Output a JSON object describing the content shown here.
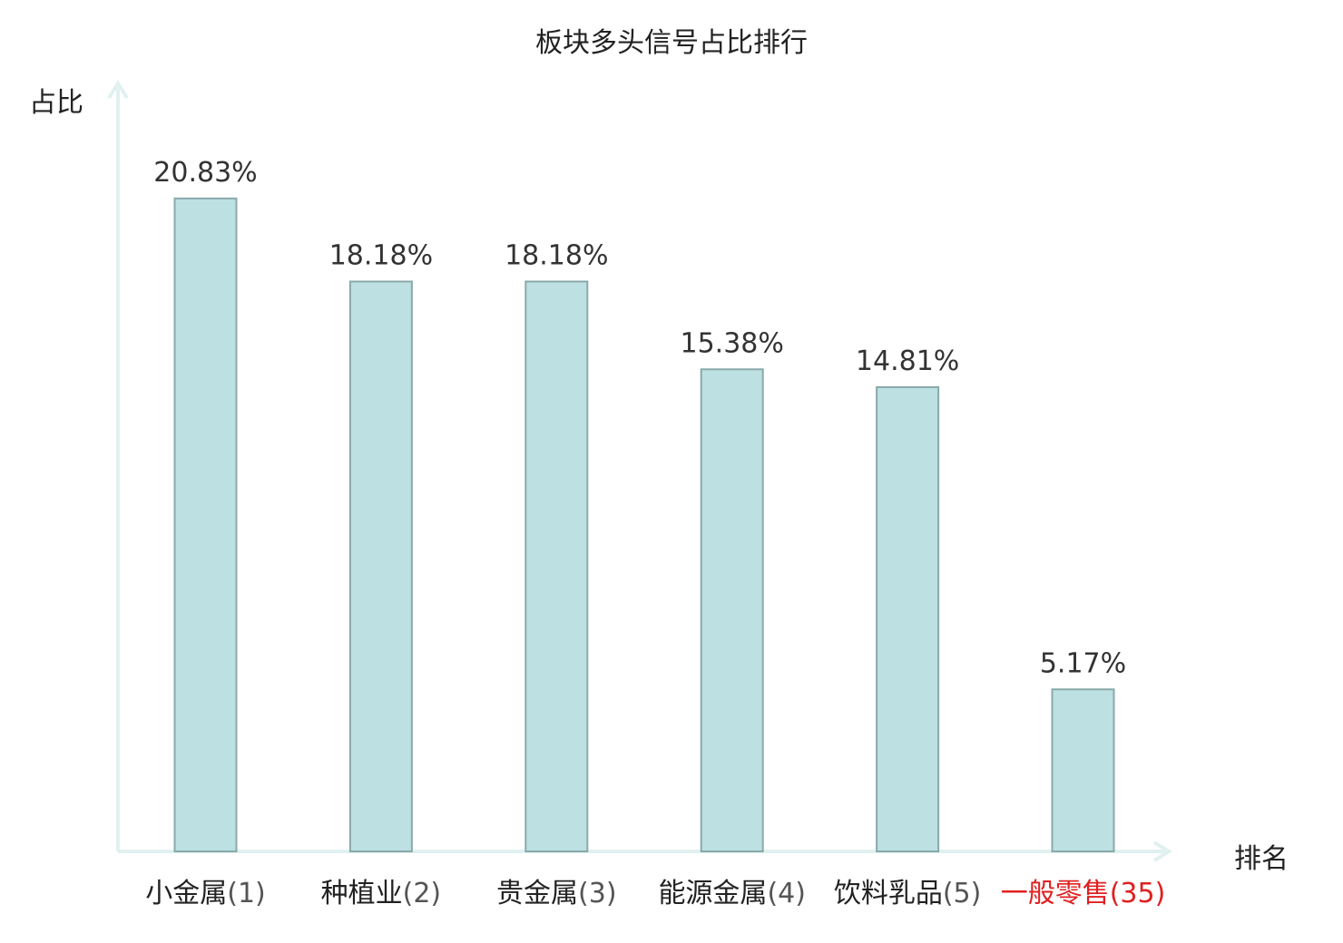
{
  "title": "板块多头信号占比排行",
  "chart_data": {
    "type": "bar",
    "title": "板块多头信号占比排行",
    "ylabel": "占比",
    "xlabel": "排名",
    "categories": [
      "小金属(1)",
      "种植业(2)",
      "贵金属(3)",
      "能源金属(4)",
      "饮料乳品(5)",
      "一般零售(35)"
    ],
    "category_names": [
      "小金属",
      "种植业",
      "贵金属",
      "能源金属",
      "饮料乳品",
      "一般零售"
    ],
    "ranks": [
      "(1)",
      "(2)",
      "(3)",
      "(4)",
      "(5)",
      "(35)"
    ],
    "values": [
      20.83,
      18.18,
      18.18,
      15.38,
      14.81,
      5.17
    ],
    "value_labels": [
      "20.83%",
      "18.18%",
      "18.18%",
      "15.38%",
      "14.81%",
      "5.17%"
    ],
    "highlight_index": 5,
    "ylim": [
      0,
      24.5
    ],
    "grid": false,
    "legend": "none",
    "colors": {
      "bar_fill": "#bde0e3",
      "bar_stroke": "#8aa9ab",
      "axis": "#e0f1ef",
      "highlight_text": "#e02020",
      "rank_text": "#555555"
    }
  }
}
